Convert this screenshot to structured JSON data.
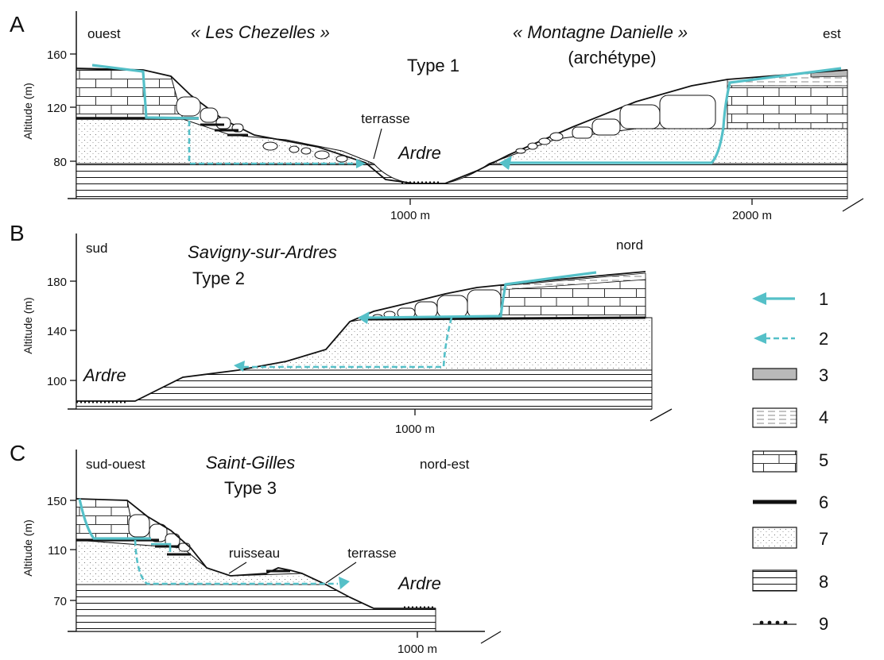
{
  "colors": {
    "water_flow": "#55c0c8",
    "outline": "#111111",
    "marl_fill": "#b9b9b9"
  },
  "panels": {
    "A": {
      "letter": "A",
      "axis_title": "Altitude (m)",
      "y_ticks": [
        "160",
        "120",
        "80"
      ],
      "x_ticks": [
        "1000 m",
        "2000 m"
      ],
      "dir_left": "ouest",
      "dir_right": "est",
      "site_left": "« Les Chezelles »",
      "site_right": "« Montagne Danielle »",
      "site_right_sub": "(archétype)",
      "type_label": "Type 1",
      "terrace_label": "terrasse",
      "river_label": "Ardre"
    },
    "B": {
      "letter": "B",
      "axis_title": "Altitude (m)",
      "y_ticks": [
        "180",
        "140",
        "100"
      ],
      "x_ticks": [
        "1000 m"
      ],
      "dir_left": "sud",
      "dir_right": "nord",
      "site": "Savigny-sur-Ardres",
      "type_label": "Type 2",
      "river_label": "Ardre"
    },
    "C": {
      "letter": "C",
      "axis_title": "Altitude (m)",
      "y_ticks": [
        "150",
        "110",
        "70"
      ],
      "x_ticks": [
        "1000 m"
      ],
      "dir_left": "sud-ouest",
      "dir_right": "nord-est",
      "site": "Saint-Gilles",
      "type_label": "Type 3",
      "stream_label": "ruisseau",
      "terrace_label": "terrasse",
      "river_label": "Ardre"
    }
  },
  "legend": [
    {
      "num": "1",
      "symbol": "solid-arrow"
    },
    {
      "num": "2",
      "symbol": "dashed-arrow"
    },
    {
      "num": "3",
      "symbol": "grey-box"
    },
    {
      "num": "4",
      "symbol": "dashed-box"
    },
    {
      "num": "5",
      "symbol": "brick-box"
    },
    {
      "num": "6",
      "symbol": "thick-line"
    },
    {
      "num": "7",
      "symbol": "dotted-box"
    },
    {
      "num": "8",
      "symbol": "lined-box"
    },
    {
      "num": "9",
      "symbol": "dotted-line"
    }
  ]
}
